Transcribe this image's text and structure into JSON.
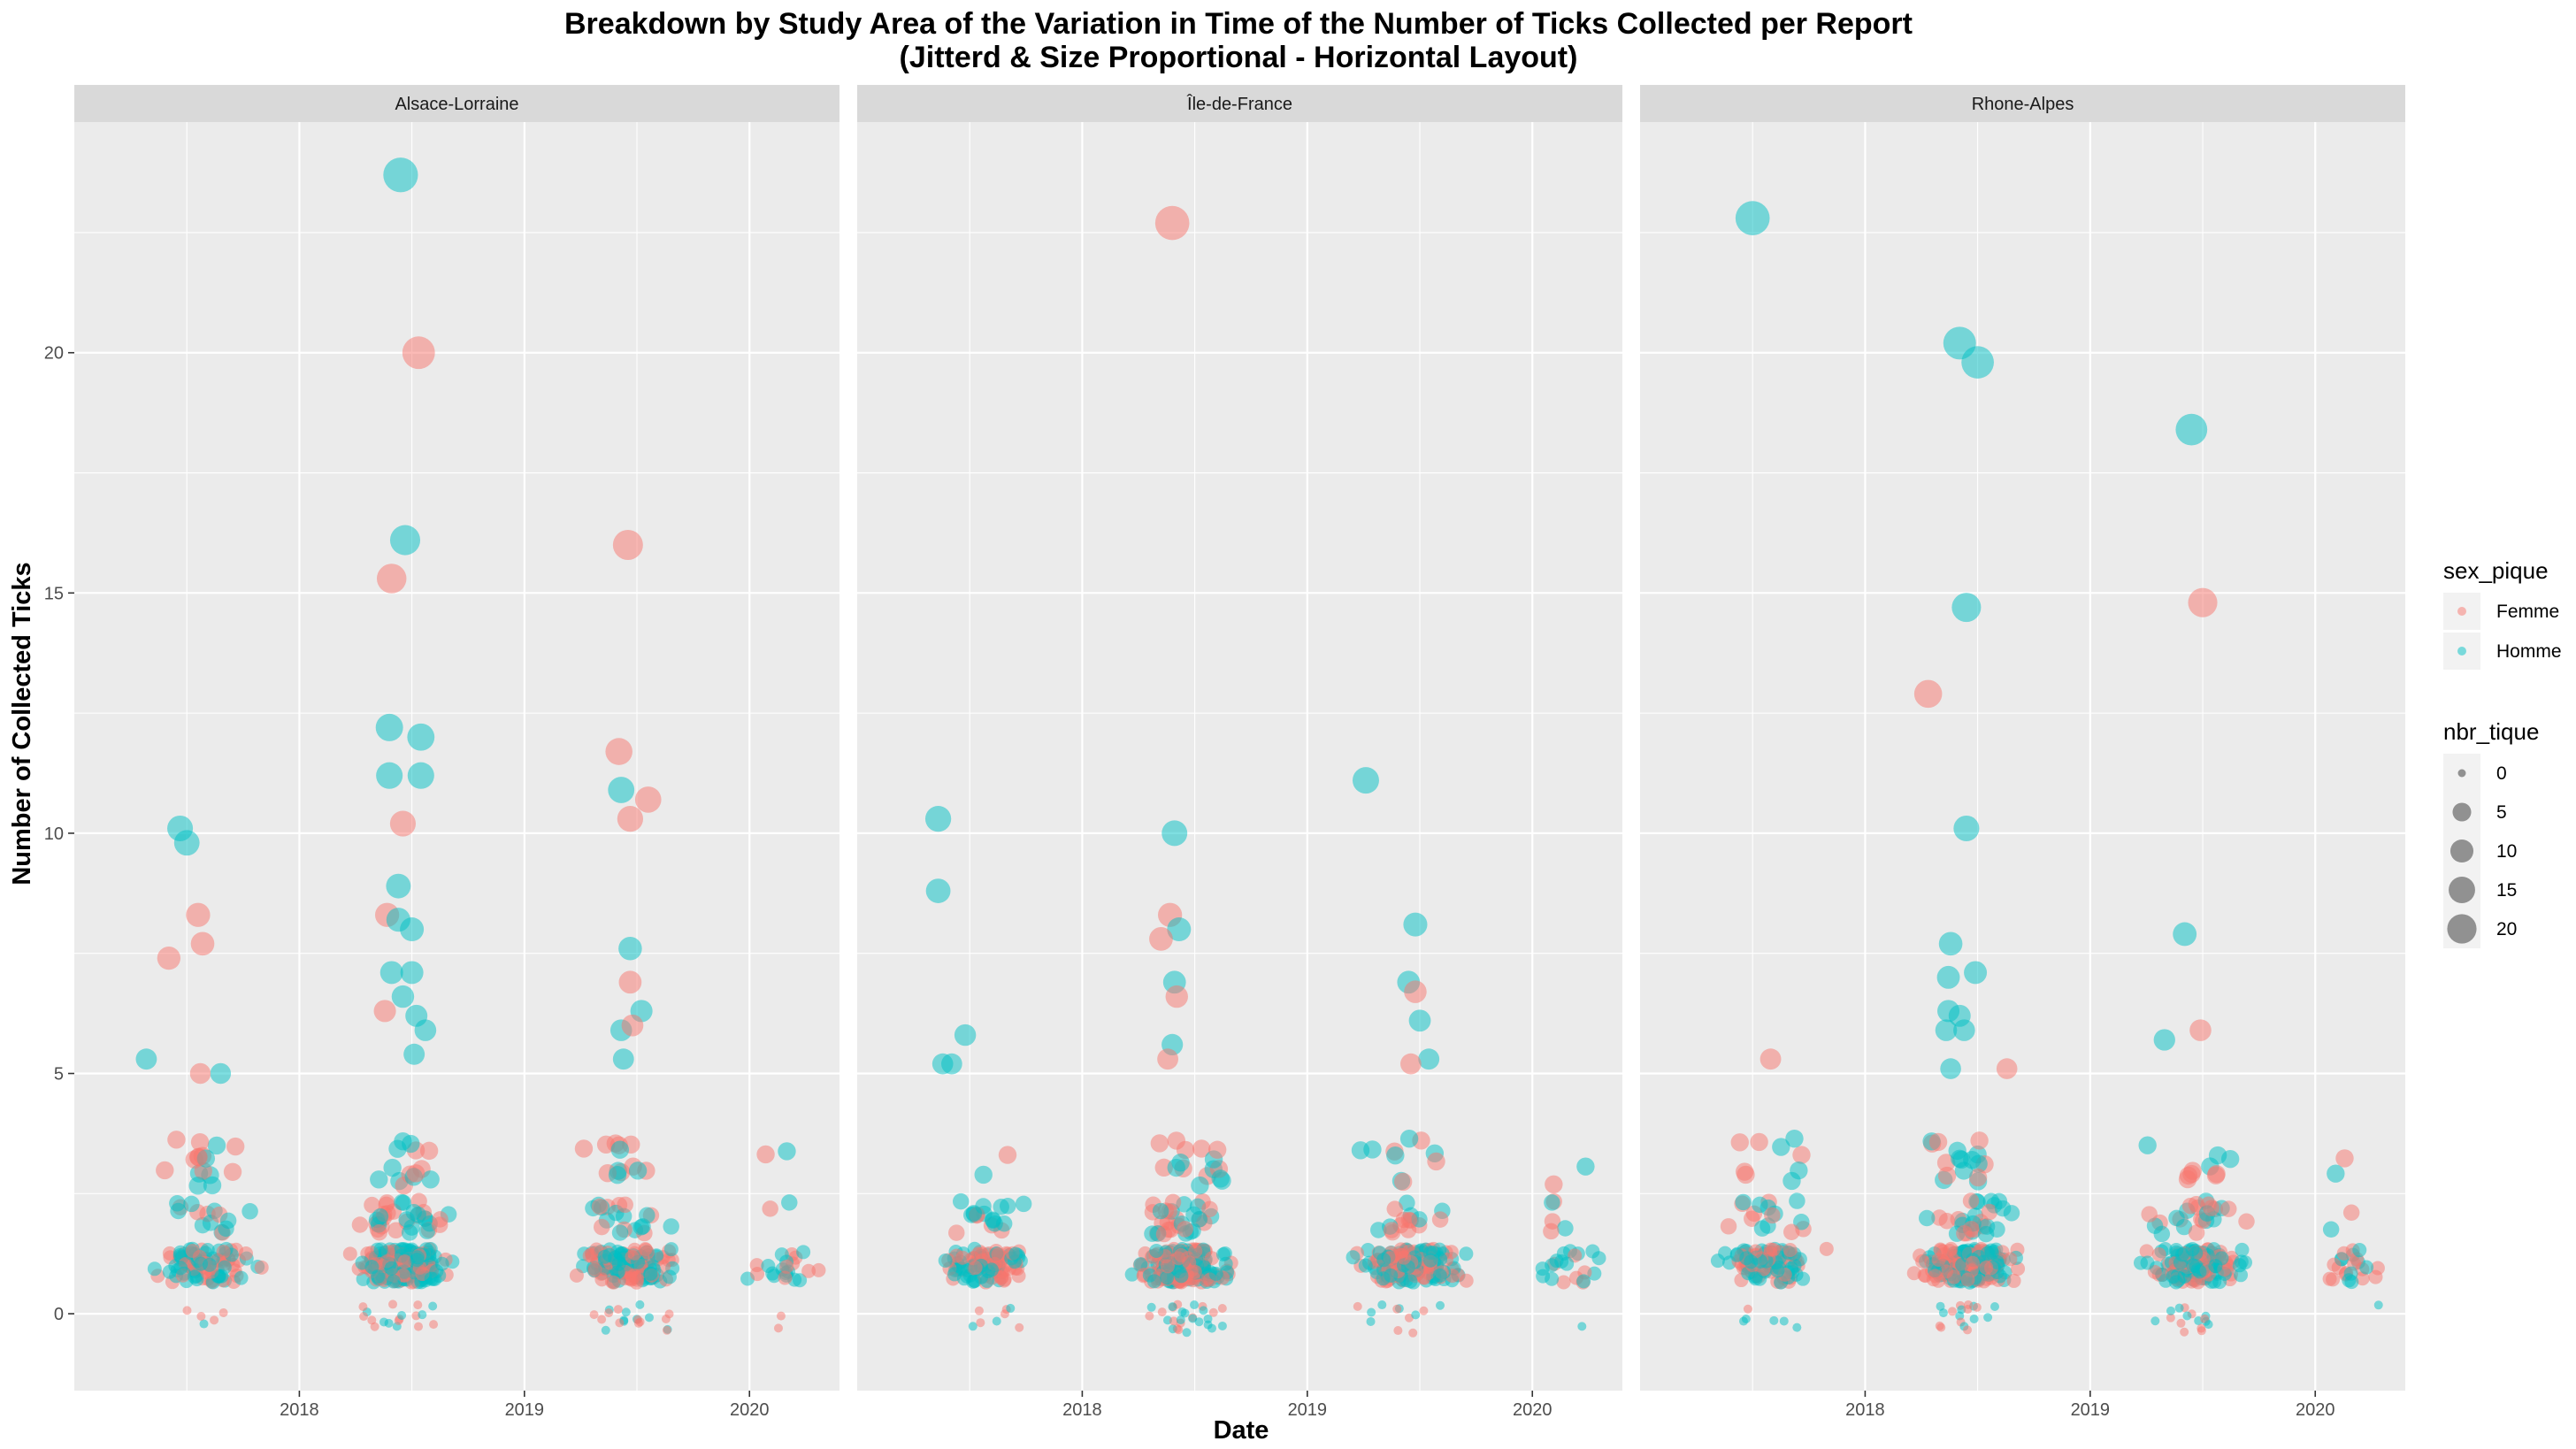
{
  "title_line1": "Breakdown by Study Area of the Variation in Time of the Number of Ticks Collected per Report",
  "title_line2": "(Jitterd & Size Proportional - Horizontal Layout)",
  "colors": {
    "Femme": "#F8766D",
    "Homme": "#00BFC4",
    "panel_bg": "#EBEBEB",
    "strip_bg": "#D9D9D9",
    "grid": "#FFFFFF"
  },
  "chart_data": {
    "type": "scatter",
    "xlabel": "Date",
    "ylabel": "Number of Collected Ticks",
    "xlim": [
      2017.0,
      2020.4
    ],
    "ylim": [
      -1.6,
      24.8
    ],
    "x_ticks": [
      2018,
      2019,
      2020
    ],
    "y_ticks": [
      0,
      5,
      10,
      15,
      20
    ],
    "grid": true,
    "legend_position": "right",
    "legend_color_title": "sex_pique",
    "legend_color_entries": [
      "Femme",
      "Homme"
    ],
    "legend_size_title": "nbr_tique",
    "legend_size_entries": [
      0,
      5,
      10,
      15,
      20
    ],
    "facets": [
      {
        "name": "Alsace-Lorraine",
        "outliers": [
          {
            "x": 2018.45,
            "y": 23.7,
            "sex": "Homme"
          },
          {
            "x": 2018.53,
            "y": 20.0,
            "sex": "Femme"
          },
          {
            "x": 2019.46,
            "y": 16.0,
            "sex": "Femme"
          },
          {
            "x": 2018.47,
            "y": 16.1,
            "sex": "Homme"
          },
          {
            "x": 2018.41,
            "y": 15.3,
            "sex": "Femme"
          },
          {
            "x": 2018.4,
            "y": 12.2,
            "sex": "Homme"
          },
          {
            "x": 2018.54,
            "y": 12.0,
            "sex": "Homme"
          },
          {
            "x": 2019.42,
            "y": 11.7,
            "sex": "Femme"
          },
          {
            "x": 2018.54,
            "y": 11.2,
            "sex": "Homme"
          },
          {
            "x": 2018.4,
            "y": 11.2,
            "sex": "Homme"
          },
          {
            "x": 2019.43,
            "y": 10.9,
            "sex": "Homme"
          },
          {
            "x": 2019.55,
            "y": 10.7,
            "sex": "Femme"
          },
          {
            "x": 2019.47,
            "y": 10.3,
            "sex": "Femme"
          },
          {
            "x": 2018.46,
            "y": 10.2,
            "sex": "Femme"
          },
          {
            "x": 2017.47,
            "y": 10.1,
            "sex": "Homme"
          },
          {
            "x": 2017.5,
            "y": 9.8,
            "sex": "Homme"
          },
          {
            "x": 2018.44,
            "y": 8.9,
            "sex": "Homme"
          },
          {
            "x": 2017.55,
            "y": 8.3,
            "sex": "Femme"
          },
          {
            "x": 2018.39,
            "y": 8.3,
            "sex": "Femme"
          },
          {
            "x": 2018.44,
            "y": 8.2,
            "sex": "Homme"
          },
          {
            "x": 2018.5,
            "y": 8.0,
            "sex": "Homme"
          },
          {
            "x": 2017.57,
            "y": 7.7,
            "sex": "Femme"
          },
          {
            "x": 2019.47,
            "y": 7.6,
            "sex": "Homme"
          },
          {
            "x": 2017.42,
            "y": 7.4,
            "sex": "Femme"
          },
          {
            "x": 2018.41,
            "y": 7.1,
            "sex": "Homme"
          },
          {
            "x": 2018.5,
            "y": 7.1,
            "sex": "Homme"
          },
          {
            "x": 2019.47,
            "y": 6.9,
            "sex": "Femme"
          },
          {
            "x": 2018.46,
            "y": 6.6,
            "sex": "Homme"
          },
          {
            "x": 2019.52,
            "y": 6.3,
            "sex": "Homme"
          },
          {
            "x": 2018.38,
            "y": 6.3,
            "sex": "Femme"
          },
          {
            "x": 2018.52,
            "y": 6.2,
            "sex": "Homme"
          },
          {
            "x": 2019.43,
            "y": 5.9,
            "sex": "Homme"
          },
          {
            "x": 2018.56,
            "y": 5.9,
            "sex": "Homme"
          },
          {
            "x": 2019.48,
            "y": 6.0,
            "sex": "Femme"
          },
          {
            "x": 2018.51,
            "y": 5.4,
            "sex": "Homme"
          },
          {
            "x": 2017.32,
            "y": 5.3,
            "sex": "Homme"
          },
          {
            "x": 2019.44,
            "y": 5.3,
            "sex": "Homme"
          },
          {
            "x": 2017.65,
            "y": 5.0,
            "sex": "Homme"
          },
          {
            "x": 2017.56,
            "y": 5.0,
            "sex": "Femme"
          }
        ]
      },
      {
        "name": "Île-de-France",
        "outliers": [
          {
            "x": 2018.4,
            "y": 22.7,
            "sex": "Femme"
          },
          {
            "x": 2019.26,
            "y": 11.1,
            "sex": "Homme"
          },
          {
            "x": 2017.36,
            "y": 10.3,
            "sex": "Homme"
          },
          {
            "x": 2018.41,
            "y": 10.0,
            "sex": "Homme"
          },
          {
            "x": 2017.36,
            "y": 8.8,
            "sex": "Homme"
          },
          {
            "x": 2018.39,
            "y": 8.3,
            "sex": "Femme"
          },
          {
            "x": 2019.48,
            "y": 8.1,
            "sex": "Homme"
          },
          {
            "x": 2018.43,
            "y": 8.0,
            "sex": "Homme"
          },
          {
            "x": 2018.35,
            "y": 7.8,
            "sex": "Femme"
          },
          {
            "x": 2018.41,
            "y": 6.9,
            "sex": "Homme"
          },
          {
            "x": 2019.45,
            "y": 6.9,
            "sex": "Homme"
          },
          {
            "x": 2019.48,
            "y": 6.7,
            "sex": "Femme"
          },
          {
            "x": 2018.42,
            "y": 6.6,
            "sex": "Femme"
          },
          {
            "x": 2019.5,
            "y": 6.1,
            "sex": "Homme"
          },
          {
            "x": 2017.48,
            "y": 5.8,
            "sex": "Homme"
          },
          {
            "x": 2018.4,
            "y": 5.6,
            "sex": "Homme"
          },
          {
            "x": 2019.54,
            "y": 5.3,
            "sex": "Homme"
          },
          {
            "x": 2019.46,
            "y": 5.2,
            "sex": "Femme"
          },
          {
            "x": 2017.38,
            "y": 5.2,
            "sex": "Homme"
          },
          {
            "x": 2017.42,
            "y": 5.2,
            "sex": "Homme"
          },
          {
            "x": 2018.38,
            "y": 5.3,
            "sex": "Femme"
          }
        ]
      },
      {
        "name": "Rhone-Alpes",
        "outliers": [
          {
            "x": 2017.5,
            "y": 22.8,
            "sex": "Homme"
          },
          {
            "x": 2018.42,
            "y": 20.2,
            "sex": "Homme"
          },
          {
            "x": 2018.5,
            "y": 19.8,
            "sex": "Homme"
          },
          {
            "x": 2019.45,
            "y": 18.4,
            "sex": "Homme"
          },
          {
            "x": 2019.5,
            "y": 14.8,
            "sex": "Femme"
          },
          {
            "x": 2018.45,
            "y": 14.7,
            "sex": "Homme"
          },
          {
            "x": 2018.28,
            "y": 12.9,
            "sex": "Femme"
          },
          {
            "x": 2018.45,
            "y": 10.1,
            "sex": "Homme"
          },
          {
            "x": 2019.42,
            "y": 7.9,
            "sex": "Homme"
          },
          {
            "x": 2018.38,
            "y": 7.7,
            "sex": "Homme"
          },
          {
            "x": 2018.49,
            "y": 7.1,
            "sex": "Homme"
          },
          {
            "x": 2018.37,
            "y": 7.0,
            "sex": "Homme"
          },
          {
            "x": 2018.37,
            "y": 6.3,
            "sex": "Homme"
          },
          {
            "x": 2018.42,
            "y": 6.2,
            "sex": "Homme"
          },
          {
            "x": 2018.44,
            "y": 5.9,
            "sex": "Homme"
          },
          {
            "x": 2019.49,
            "y": 5.9,
            "sex": "Femme"
          },
          {
            "x": 2018.36,
            "y": 5.9,
            "sex": "Homme"
          },
          {
            "x": 2019.33,
            "y": 5.7,
            "sex": "Homme"
          },
          {
            "x": 2017.58,
            "y": 5.3,
            "sex": "Femme"
          },
          {
            "x": 2018.38,
            "y": 5.1,
            "sex": "Homme"
          },
          {
            "x": 2018.63,
            "y": 5.1,
            "sex": "Femme"
          }
        ]
      }
    ]
  }
}
